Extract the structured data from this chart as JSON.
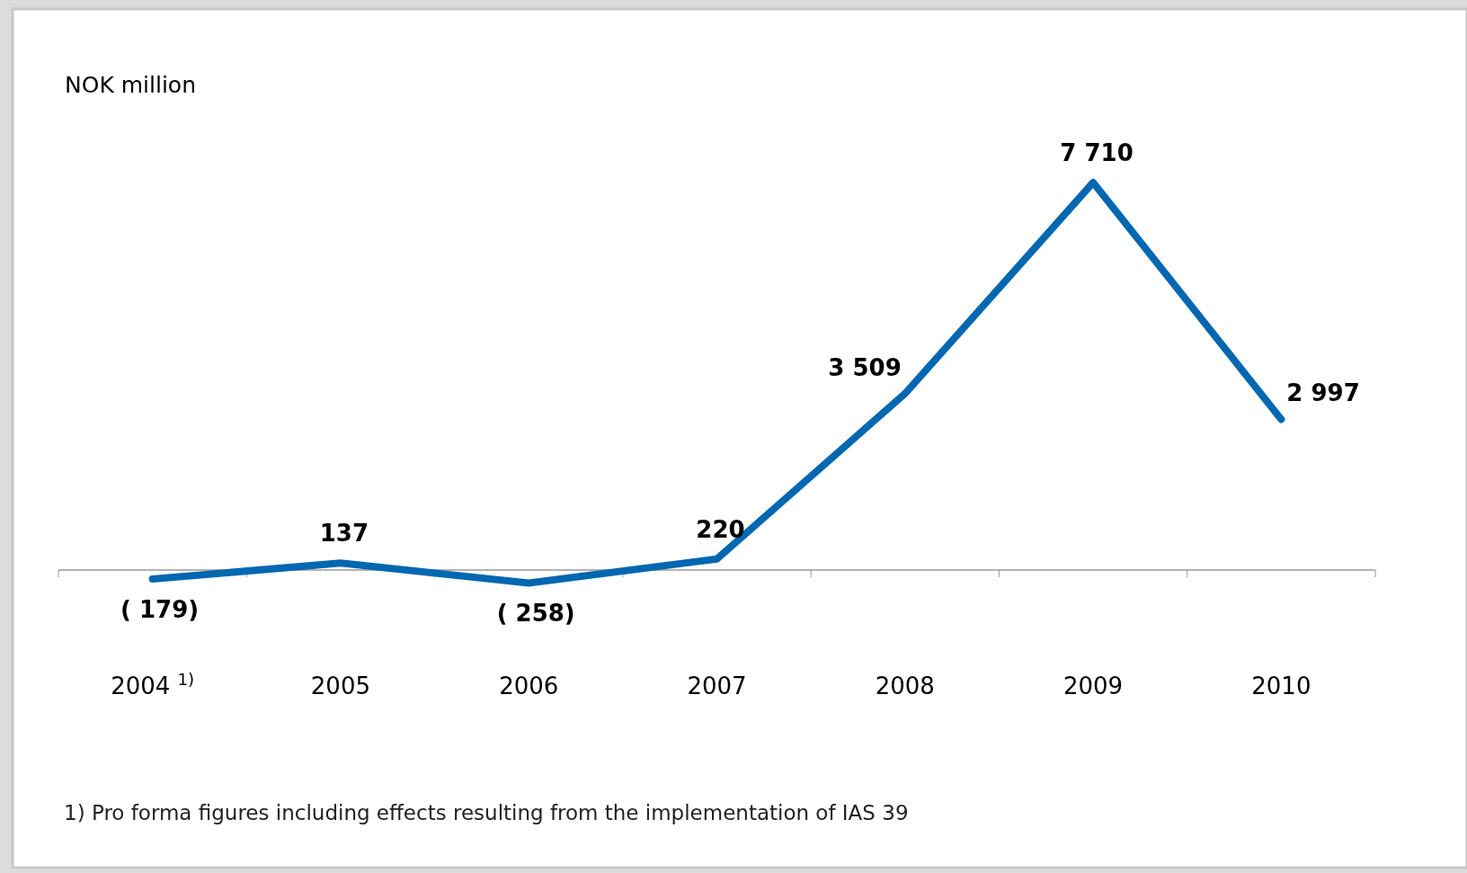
{
  "chart_data": {
    "type": "line",
    "ylabel": "NOK million",
    "categories": [
      "2004$^{1)}$",
      "2005",
      "2006",
      "2007",
      "2008",
      "2009",
      "2010"
    ],
    "series": [
      {
        "color": "#0067b1",
        "values": [
          -179,
          137,
          -258,
          220,
          3509,
          7710,
          2997
        ],
        "value_labels": [
          "( 179)",
          "137",
          "( 258)",
          "220",
          "3 509",
          "7 710",
          "2 997"
        ]
      }
    ],
    "annotations": [
      "1) Pro forma figures including effects resulting from the implementation of IAS 39"
    ]
  }
}
